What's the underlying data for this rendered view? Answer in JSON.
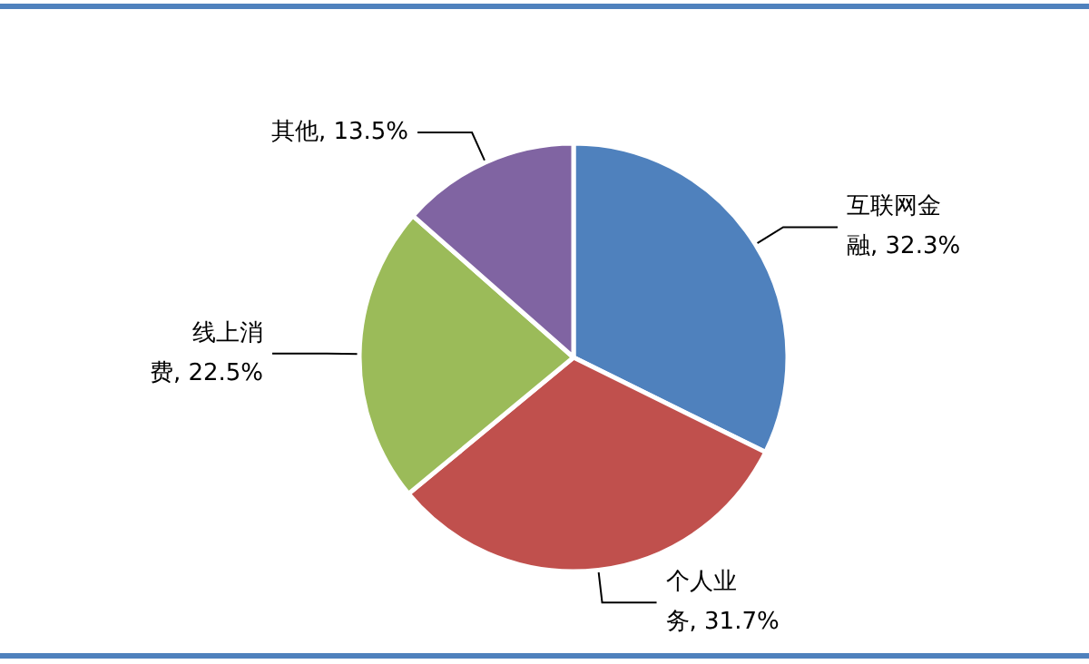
{
  "chart_data": {
    "type": "pie",
    "categories": [
      "互联网金融",
      "个人业务",
      "线上消费",
      "其他"
    ],
    "values": [
      32.3,
      31.7,
      22.5,
      13.5
    ],
    "value_labels": [
      "32.3%",
      "31.7%",
      "22.5%",
      "13.5%"
    ],
    "colors": [
      "#4f81bd",
      "#c0504d",
      "#9bbb59",
      "#8064a2"
    ],
    "legend": false
  }
}
